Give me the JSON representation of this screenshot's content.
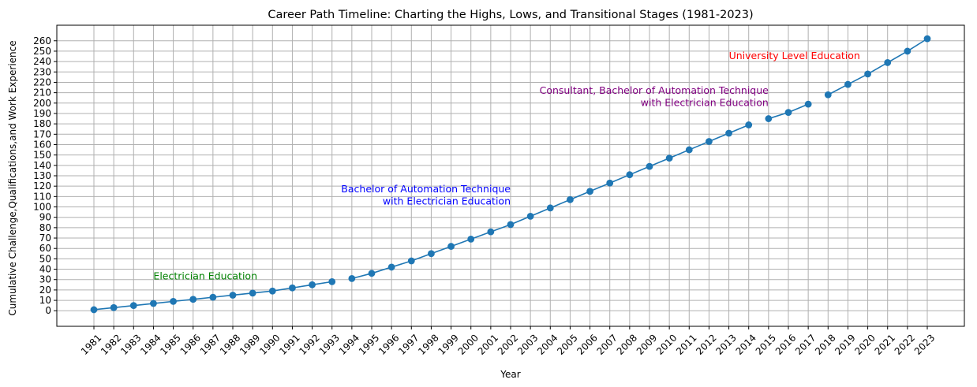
{
  "chart_data": {
    "type": "line",
    "title": "Career Path Timeline: Charting the Highs, Lows, and Transitional Stages (1981-2023)",
    "xlabel": "Year",
    "ylabel": "Cumulative Challenge,Qualifications,and Work Experience",
    "ylim": [
      -15,
      275
    ],
    "grid": true,
    "line_color": "#1f77b4",
    "categories": [
      "1981",
      "1982",
      "1983",
      "1984",
      "1985",
      "1986",
      "1987",
      "1988",
      "1989",
      "1990",
      "1991",
      "1992",
      "1993",
      "1994",
      "1995",
      "1996",
      "1997",
      "1998",
      "1999",
      "2000",
      "2001",
      "2002",
      "2003",
      "2004",
      "2005",
      "2006",
      "2007",
      "2008",
      "2009",
      "2010",
      "2011",
      "2012",
      "2013",
      "2014",
      "2015",
      "2016",
      "2017",
      "2018",
      "2019",
      "2020",
      "2021",
      "2022",
      "2023"
    ],
    "yticks": [
      0,
      10,
      20,
      30,
      40,
      50,
      60,
      70,
      80,
      90,
      100,
      110,
      120,
      130,
      140,
      150,
      160,
      170,
      180,
      190,
      200,
      210,
      220,
      230,
      240,
      250,
      260
    ],
    "segments": [
      {
        "start": 0,
        "values": [
          1,
          3,
          5,
          7,
          9,
          11,
          13,
          15,
          17,
          19,
          22,
          25,
          28
        ]
      },
      {
        "start": 13,
        "values": [
          31,
          36,
          42,
          48,
          55,
          62,
          69,
          76,
          83,
          91,
          99,
          107,
          115,
          123,
          131,
          139,
          147,
          155,
          163,
          171,
          179
        ]
      },
      {
        "start": 34,
        "values": [
          185,
          191,
          199
        ]
      },
      {
        "start": 37,
        "values": [
          208,
          218,
          228,
          239,
          250,
          262
        ]
      }
    ],
    "annotations": [
      {
        "lines": [
          "Electrician Education"
        ],
        "color": "#008000",
        "x": "1984",
        "y": 28,
        "align": "start"
      },
      {
        "lines": [
          "Bachelor of Automation Technique",
          "with Electrician Education"
        ],
        "color": "#0000ff",
        "x": "2002",
        "y": 100,
        "align": "end"
      },
      {
        "lines": [
          "Consultant, Bachelor of Automation Technique",
          "with Electrician Education"
        ],
        "color": "#800080",
        "x": "2015",
        "y": 195,
        "align": "end"
      },
      {
        "lines": [
          "University Level Education"
        ],
        "color": "#ff0000",
        "x": "2013",
        "y": 240,
        "align": "start"
      }
    ]
  }
}
